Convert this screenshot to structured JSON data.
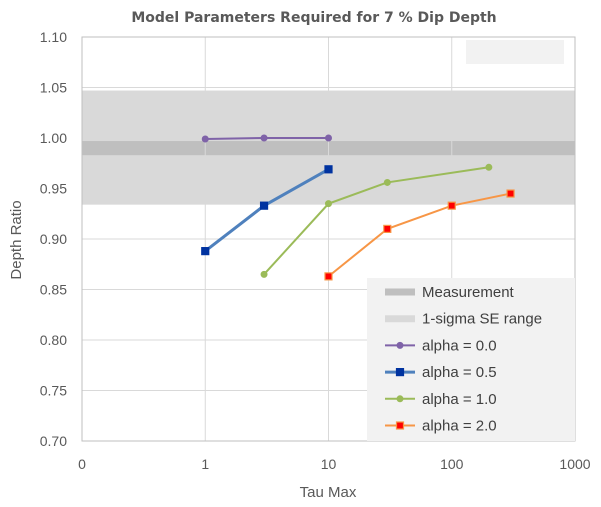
{
  "chart_data": {
    "type": "line",
    "title": "Model Parameters Required for 7 % Dip Depth",
    "xlabel": "Tau Max",
    "ylabel": "Depth Ratio",
    "x_scale": "log",
    "x_tick_labels": [
      "0",
      "1",
      "10",
      "100",
      "1000"
    ],
    "y_tick_labels": [
      "0.70",
      "0.75",
      "0.80",
      "0.85",
      "0.90",
      "0.95",
      "1.00",
      "1.05",
      "1.10"
    ],
    "xlim": [
      0.1,
      1000
    ],
    "ylim": [
      0.7,
      1.1
    ],
    "grid": true,
    "legend_position": "bottom-right",
    "bands": [
      {
        "name": "Measurement",
        "y0": 0.983,
        "y1": 0.997,
        "color": "#bfbfbf"
      },
      {
        "name": "1-sigma SE range",
        "y0": 0.934,
        "y1": 1.047,
        "color": "#d9d9d9"
      }
    ],
    "series": [
      {
        "name": "alpha = 0.0",
        "color": "#7f63a8",
        "marker": "circle",
        "marker_fill": "#7f63a8",
        "marker_stroke": "#7f63a8",
        "line_width": 2,
        "x": [
          1,
          3,
          10
        ],
        "y": [
          0.999,
          1.0,
          1.0
        ]
      },
      {
        "name": "alpha = 0.5",
        "color": "#4f81bd",
        "marker": "square",
        "marker_fill": "#0033a0",
        "marker_stroke": "#0033a0",
        "line_width": 3,
        "x": [
          1,
          3,
          10
        ],
        "y": [
          0.888,
          0.933,
          0.969
        ]
      },
      {
        "name": "alpha = 1.0",
        "color": "#9bbb59",
        "marker": "circle",
        "marker_fill": "#9bbb59",
        "marker_stroke": "#9bbb59",
        "line_width": 2,
        "x": [
          3,
          10,
          30,
          200
        ],
        "y": [
          0.865,
          0.935,
          0.956,
          0.971
        ]
      },
      {
        "name": "alpha = 2.0",
        "color": "#f79646",
        "marker": "square",
        "marker_fill": "#ff0000",
        "marker_stroke": "#f79646",
        "line_width": 2,
        "x": [
          10,
          30,
          100,
          300
        ],
        "y": [
          0.863,
          0.91,
          0.933,
          0.945
        ]
      }
    ]
  }
}
